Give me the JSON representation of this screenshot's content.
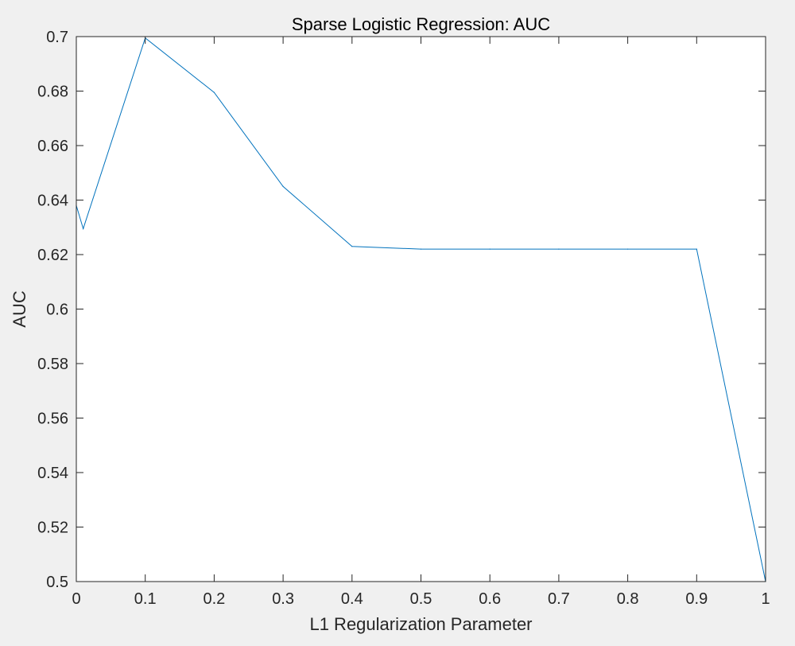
{
  "chart_data": {
    "type": "line",
    "title": "Sparse Logistic Regression: AUC",
    "xlabel": "L1 Regularization Parameter",
    "ylabel": "AUC",
    "xlim": [
      0,
      1
    ],
    "ylim": [
      0.5,
      0.7
    ],
    "grid": false,
    "x_ticks": [
      "0",
      "0.1",
      "0.2",
      "0.3",
      "0.4",
      "0.5",
      "0.6",
      "0.7",
      "0.8",
      "0.9",
      "1"
    ],
    "y_ticks": [
      "0.5",
      "0.52",
      "0.54",
      "0.56",
      "0.58",
      "0.6",
      "0.62",
      "0.64",
      "0.66",
      "0.68",
      "0.7"
    ],
    "series": [
      {
        "color": "#0072bd",
        "x": [
          0,
          0.01,
          0.1,
          0.2,
          0.3,
          0.4,
          0.5,
          0.6,
          0.7,
          0.8,
          0.9,
          1.0
        ],
        "y": [
          0.638,
          0.6295,
          0.6995,
          0.6795,
          0.645,
          0.623,
          0.622,
          0.622,
          0.622,
          0.622,
          0.622,
          0.5
        ]
      }
    ]
  }
}
